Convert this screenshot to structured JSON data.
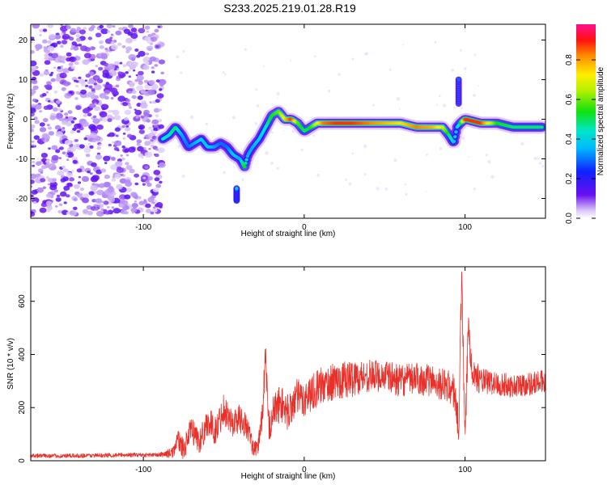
{
  "figure_title": "S233.2025.219.01.28.R19",
  "chart_data": [
    {
      "type": "heatmap",
      "title": "S233.2025.219.01.28.R19",
      "xlabel": "Height of straight line (km)",
      "ylabel": "Frequency (Hz)",
      "xlim": [
        -170,
        150
      ],
      "ylim": [
        -25,
        24
      ],
      "xticks": [
        -100,
        0,
        100
      ],
      "yticks": [
        -20,
        -10,
        0,
        10,
        20
      ],
      "colorbar": {
        "label": "Normalized spectral amplitude",
        "range": [
          0,
          0.98
        ],
        "ticks": [
          "0.0",
          "0.2",
          "0.4",
          "0.6",
          "0.8"
        ],
        "colormap": "rainbow (purple → blue → cyan → green → yellow → red → magenta)"
      },
      "noise_region": {
        "x_range": [
          -170,
          -88
        ],
        "f_range": [
          -24,
          24
        ],
        "amplitude": 0.1
      },
      "ridge": {
        "x": [
          -88,
          -84,
          -80,
          -76,
          -72,
          -68,
          -64,
          -60,
          -56,
          -52,
          -48,
          -44,
          -40,
          -37,
          -35,
          -32,
          -28,
          -24,
          -20,
          -16,
          -12,
          -8,
          -4,
          0,
          4,
          8,
          12,
          20,
          30,
          40,
          50,
          60,
          70,
          80,
          86,
          90,
          93,
          95,
          97,
          100,
          110,
          120,
          130,
          140,
          148
        ],
        "f": [
          -5,
          -4,
          -2,
          -4,
          -7,
          -6,
          -5,
          -7,
          -7,
          -6,
          -7,
          -9,
          -10,
          -12,
          -9,
          -7,
          -5,
          -2,
          1,
          2,
          0,
          0,
          -1,
          -3,
          -2,
          -1,
          -1,
          -1,
          -1,
          -1,
          -1,
          -1,
          -2,
          -2,
          -2,
          -4,
          -6,
          -2,
          -1,
          0,
          -1,
          -1,
          -2,
          -2,
          -2
        ],
        "amp": [
          0.45,
          0.45,
          0.5,
          0.35,
          0.3,
          0.35,
          0.4,
          0.4,
          0.35,
          0.3,
          0.3,
          0.4,
          0.35,
          0.55,
          0.35,
          0.35,
          0.4,
          0.45,
          0.55,
          0.6,
          0.75,
          0.9,
          0.6,
          0.5,
          0.55,
          0.7,
          0.85,
          0.9,
          0.9,
          0.85,
          0.8,
          0.75,
          0.85,
          0.8,
          0.7,
          0.5,
          0.4,
          0.4,
          0.5,
          0.9,
          0.9,
          0.55,
          0.5,
          0.5,
          0.5
        ]
      },
      "features": [
        {
          "x": -42,
          "f": -19,
          "width_f": 3,
          "amp": 0.4
        },
        {
          "x": 96,
          "f": 7,
          "width_f": 6,
          "amp": 0.3
        }
      ]
    },
    {
      "type": "line",
      "xlabel": "Height of straight line (km)",
      "ylabel": "SNR (10 * v/v)",
      "xlim": [
        -170,
        150
      ],
      "ylim": [
        0,
        730
      ],
      "xticks": [
        -100,
        0,
        100
      ],
      "yticks": [
        0,
        200,
        400,
        600
      ],
      "series": [
        {
          "color": "#e8312a",
          "x": [
            -170,
            -150,
            -130,
            -110,
            -90,
            -82,
            -78,
            -75,
            -70,
            -65,
            -60,
            -55,
            -50,
            -45,
            -40,
            -35,
            -32,
            -29,
            -26,
            -25,
            -24,
            -22,
            -20,
            -15,
            -10,
            -5,
            0,
            5,
            10,
            20,
            30,
            40,
            50,
            60,
            70,
            80,
            90,
            94,
            96,
            97,
            98,
            99,
            100,
            102,
            105,
            110,
            120,
            130,
            140,
            150
          ],
          "y": [
            20,
            18,
            20,
            22,
            22,
            30,
            80,
            40,
            120,
            70,
            150,
            110,
            200,
            140,
            160,
            120,
            50,
            40,
            180,
            300,
            380,
            120,
            170,
            220,
            180,
            240,
            230,
            260,
            280,
            300,
            310,
            320,
            320,
            300,
            310,
            300,
            280,
            250,
            100,
            400,
            730,
            350,
            60,
            500,
            330,
            300,
            290,
            280,
            290,
            300
          ],
          "noise": [
            8,
            8,
            8,
            8,
            8,
            20,
            40,
            40,
            50,
            50,
            55,
            55,
            60,
            55,
            55,
            50,
            30,
            30,
            60,
            60,
            60,
            60,
            70,
            70,
            70,
            70,
            70,
            70,
            70,
            70,
            70,
            60,
            60,
            60,
            60,
            60,
            60,
            80,
            80,
            80,
            80,
            80,
            80,
            80,
            60,
            50,
            45,
            45,
            45,
            45
          ]
        }
      ]
    }
  ]
}
